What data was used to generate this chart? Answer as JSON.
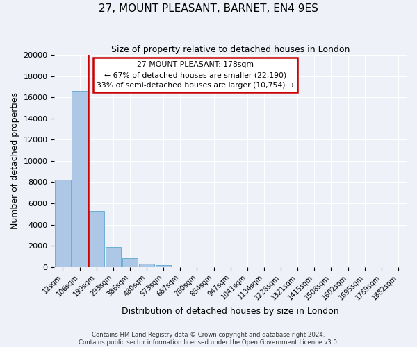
{
  "title": "27, MOUNT PLEASANT, BARNET, EN4 9ES",
  "subtitle": "Size of property relative to detached houses in London",
  "xlabel": "Distribution of detached houses by size in London",
  "ylabel": "Number of detached properties",
  "bar_color": "#adc8e6",
  "bar_edge_color": "#6aaed6",
  "bg_color": "#eef2f8",
  "annotation_box_edge_color": "#cc0000",
  "red_line_color": "#cc0000",
  "property_label": "27 MOUNT PLEASANT: 178sqm",
  "pct_smaller": "67%",
  "n_smaller": "22,190",
  "pct_larger": "33%",
  "n_larger": "10,754",
  "bin_labels": [
    "12sqm",
    "106sqm",
    "199sqm",
    "293sqm",
    "386sqm",
    "480sqm",
    "573sqm",
    "667sqm",
    "760sqm",
    "854sqm",
    "947sqm",
    "1041sqm",
    "1134sqm",
    "1228sqm",
    "1321sqm",
    "1415sqm",
    "1508sqm",
    "1602sqm",
    "1695sqm",
    "1789sqm",
    "1882sqm"
  ],
  "bar_heights": [
    8200,
    16600,
    5300,
    1850,
    800,
    300,
    150,
    0,
    0,
    0,
    0,
    0,
    0,
    0,
    0,
    0,
    0,
    0,
    0,
    0,
    0
  ],
  "ylim": [
    0,
    20000
  ],
  "yticks": [
    0,
    2000,
    4000,
    6000,
    8000,
    10000,
    12000,
    14000,
    16000,
    18000,
    20000
  ],
  "red_line_x": 1.5,
  "footer1": "Contains HM Land Registry data © Crown copyright and database right 2024.",
  "footer2": "Contains public sector information licensed under the Open Government Licence v3.0."
}
